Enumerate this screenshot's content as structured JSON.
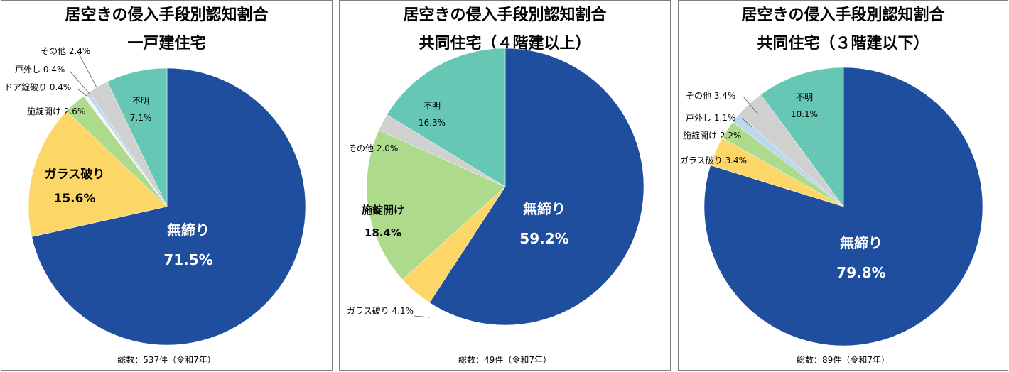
{
  "chart_data": [
    {
      "type": "pie",
      "title": "居空きの侵入手段別認知割合",
      "subtitle": "一戸建住宅",
      "total_label": "総数：537件（令和7年）",
      "slices": [
        {
          "label": "無締り",
          "value": "71.5%",
          "pct": 71.5,
          "color": "#1F4E9F"
        },
        {
          "label": "ガラス破り",
          "value": "15.6%",
          "pct": 15.6,
          "color": "#FCD667"
        },
        {
          "label": "施錠開け",
          "value": "2.6%",
          "pct": 2.6,
          "color": "#ADDB8B"
        },
        {
          "label": "ドア錠破り",
          "value": "0.4%",
          "pct": 0.4,
          "color": "#F4F4F4"
        },
        {
          "label": "戸外し",
          "value": "0.4%",
          "pct": 0.4,
          "color": "#BDD7EE"
        },
        {
          "label": "その他",
          "value": "2.4%",
          "pct": 2.4,
          "color": "#D0D0D0"
        },
        {
          "label": "不明",
          "value": "7.1%",
          "pct": 7.1,
          "color": "#66C7B4"
        }
      ]
    },
    {
      "type": "pie",
      "title": "居空きの侵入手段別認知割合",
      "subtitle": "共同住宅（４階建以上）",
      "total_label": "総数：49件（令和7年）",
      "slices": [
        {
          "label": "無締り",
          "value": "59.2%",
          "pct": 59.2,
          "color": "#1F4E9F"
        },
        {
          "label": "ガラス破り",
          "value": "4.1%",
          "pct": 4.1,
          "color": "#FCD667"
        },
        {
          "label": "施錠開け",
          "value": "18.4%",
          "pct": 18.4,
          "color": "#ADDB8B"
        },
        {
          "label": "その他",
          "value": "2.0%",
          "pct": 2.0,
          "color": "#D0D0D0"
        },
        {
          "label": "不明",
          "value": "16.3%",
          "pct": 16.3,
          "color": "#66C7B4"
        }
      ]
    },
    {
      "type": "pie",
      "title": "居空きの侵入手段別認知割合",
      "subtitle": "共同住宅（３階建以下）",
      "total_label": "総数：89件（令和7年）",
      "slices": [
        {
          "label": "無締り",
          "value": "79.8%",
          "pct": 79.8,
          "color": "#1F4E9F"
        },
        {
          "label": "ガラス破り",
          "value": "3.4%",
          "pct": 3.4,
          "color": "#FCD667"
        },
        {
          "label": "施錠開け",
          "value": "2.2%",
          "pct": 2.2,
          "color": "#ADDB8B"
        },
        {
          "label": "戸外し",
          "value": "1.1%",
          "pct": 1.1,
          "color": "#BDD7EE"
        },
        {
          "label": "その他",
          "value": "3.4%",
          "pct": 3.4,
          "color": "#D0D0D0"
        },
        {
          "label": "不明",
          "value": "10.1%",
          "pct": 10.1,
          "color": "#66C7B4"
        }
      ]
    }
  ]
}
